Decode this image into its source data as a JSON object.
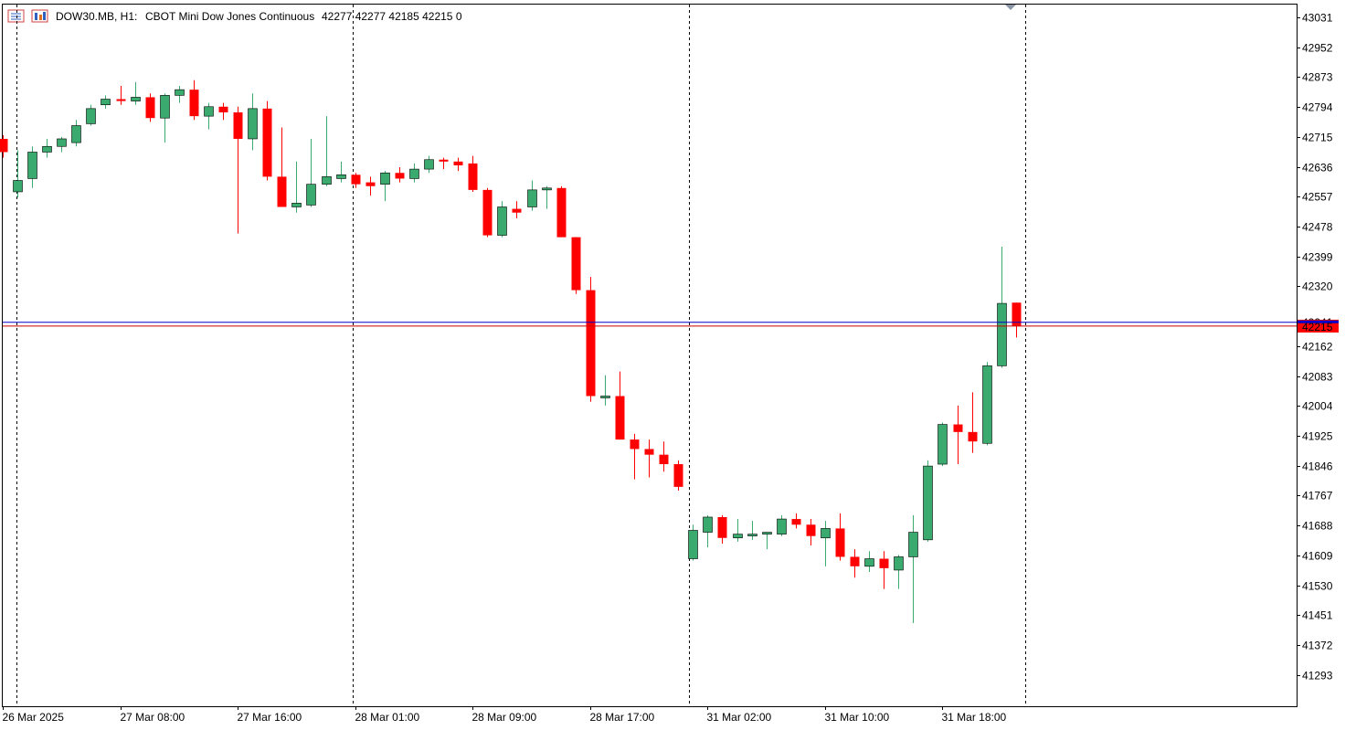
{
  "header": {
    "symbol": "DOW30.MB, H1:",
    "description": "CBOT Mini Dow Jones Continuous",
    "ohlc": "42277 42277 42185 42215 0"
  },
  "colors": {
    "bull": "#3aaa6e",
    "bear": "#ff0000",
    "bid_line": "#0000cc",
    "ask_line": "#cc0000",
    "grid": "#000000",
    "price_tag_bg": "#ff0000"
  },
  "price_tag": "42215",
  "price_tag_hidden": "42241",
  "chart_data": {
    "type": "candlestick",
    "title": "",
    "y_ticks": [
      43031,
      42952,
      42873,
      42794,
      42715,
      42636,
      42557,
      42478,
      42399,
      42320,
      42162,
      42083,
      42004,
      41925,
      41846,
      41767,
      41688,
      41609,
      41530,
      41451,
      41372,
      41293
    ],
    "x_ticks": [
      "26 Mar 2025",
      "27 Mar 08:00",
      "27 Mar 16:00",
      "28 Mar 01:00",
      "28 Mar 09:00",
      "28 Mar 17:00",
      "31 Mar 02:00",
      "31 Mar 10:00",
      "31 Mar 18:00"
    ],
    "ylim": [
      41210,
      43065
    ],
    "bid_price": 42225,
    "last_price": 42215,
    "candles": [
      {
        "o": 42710,
        "h": 42720,
        "l": 42660,
        "c": 42675
      },
      {
        "o": 42570,
        "h": 42680,
        "l": 42555,
        "c": 42600
      },
      {
        "o": 42605,
        "h": 42690,
        "l": 42580,
        "c": 42675
      },
      {
        "o": 42675,
        "h": 42710,
        "l": 42660,
        "c": 42690
      },
      {
        "o": 42690,
        "h": 42715,
        "l": 42675,
        "c": 42710
      },
      {
        "o": 42700,
        "h": 42760,
        "l": 42690,
        "c": 42745
      },
      {
        "o": 42750,
        "h": 42800,
        "l": 42745,
        "c": 42790
      },
      {
        "o": 42800,
        "h": 42825,
        "l": 42790,
        "c": 42815
      },
      {
        "o": 42815,
        "h": 42850,
        "l": 42800,
        "c": 42810
      },
      {
        "o": 42810,
        "h": 42860,
        "l": 42800,
        "c": 42820
      },
      {
        "o": 42820,
        "h": 42830,
        "l": 42755,
        "c": 42765
      },
      {
        "o": 42765,
        "h": 42830,
        "l": 42700,
        "c": 42825
      },
      {
        "o": 42825,
        "h": 42850,
        "l": 42805,
        "c": 42840
      },
      {
        "o": 42840,
        "h": 42865,
        "l": 42760,
        "c": 42770
      },
      {
        "o": 42770,
        "h": 42805,
        "l": 42735,
        "c": 42795
      },
      {
        "o": 42795,
        "h": 42805,
        "l": 42760,
        "c": 42780
      },
      {
        "o": 42780,
        "h": 42795,
        "l": 42460,
        "c": 42710
      },
      {
        "o": 42710,
        "h": 42830,
        "l": 42680,
        "c": 42790
      },
      {
        "o": 42790,
        "h": 42810,
        "l": 42600,
        "c": 42610
      },
      {
        "o": 42610,
        "h": 42740,
        "l": 42530,
        "c": 42530
      },
      {
        "o": 42530,
        "h": 42650,
        "l": 42515,
        "c": 42540
      },
      {
        "o": 42535,
        "h": 42710,
        "l": 42530,
        "c": 42590
      },
      {
        "o": 42590,
        "h": 42770,
        "l": 42585,
        "c": 42610
      },
      {
        "o": 42605,
        "h": 42650,
        "l": 42595,
        "c": 42615
      },
      {
        "o": 42615,
        "h": 42620,
        "l": 42580,
        "c": 42590
      },
      {
        "o": 42595,
        "h": 42610,
        "l": 42560,
        "c": 42585
      },
      {
        "o": 42590,
        "h": 42625,
        "l": 42545,
        "c": 42620
      },
      {
        "o": 42620,
        "h": 42635,
        "l": 42595,
        "c": 42605
      },
      {
        "o": 42605,
        "h": 42645,
        "l": 42595,
        "c": 42630
      },
      {
        "o": 42630,
        "h": 42665,
        "l": 42620,
        "c": 42655
      },
      {
        "o": 42655,
        "h": 42660,
        "l": 42630,
        "c": 42650
      },
      {
        "o": 42650,
        "h": 42660,
        "l": 42625,
        "c": 42640
      },
      {
        "o": 42645,
        "h": 42665,
        "l": 42570,
        "c": 42575
      },
      {
        "o": 42575,
        "h": 42580,
        "l": 42450,
        "c": 42455
      },
      {
        "o": 42455,
        "h": 42545,
        "l": 42450,
        "c": 42530
      },
      {
        "o": 42525,
        "h": 42545,
        "l": 42500,
        "c": 42515
      },
      {
        "o": 42530,
        "h": 42600,
        "l": 42520,
        "c": 42575
      },
      {
        "o": 42575,
        "h": 42585,
        "l": 42525,
        "c": 42580
      },
      {
        "o": 42580,
        "h": 42585,
        "l": 42450,
        "c": 42450
      },
      {
        "o": 42450,
        "h": 42450,
        "l": 42300,
        "c": 42310
      },
      {
        "o": 42310,
        "h": 42345,
        "l": 42015,
        "c": 42030
      },
      {
        "o": 42030,
        "h": 42085,
        "l": 42005,
        "c": 42030
      },
      {
        "o": 42030,
        "h": 42095,
        "l": 41915,
        "c": 41915
      },
      {
        "o": 41915,
        "h": 41930,
        "l": 41810,
        "c": 41890
      },
      {
        "o": 41890,
        "h": 41915,
        "l": 41815,
        "c": 41875
      },
      {
        "o": 41875,
        "h": 41910,
        "l": 41830,
        "c": 41850
      },
      {
        "o": 41850,
        "h": 41860,
        "l": 41780,
        "c": 41790
      },
      {
        "o": 41600,
        "h": 41690,
        "l": 41595,
        "c": 41675
      },
      {
        "o": 41670,
        "h": 41715,
        "l": 41630,
        "c": 41710
      },
      {
        "o": 41710,
        "h": 41715,
        "l": 41640,
        "c": 41655
      },
      {
        "o": 41655,
        "h": 41705,
        "l": 41645,
        "c": 41665
      },
      {
        "o": 41665,
        "h": 41700,
        "l": 41650,
        "c": 41665
      },
      {
        "o": 41665,
        "h": 41670,
        "l": 41625,
        "c": 41670
      },
      {
        "o": 41665,
        "h": 41715,
        "l": 41660,
        "c": 41705
      },
      {
        "o": 41705,
        "h": 41720,
        "l": 41680,
        "c": 41690
      },
      {
        "o": 41690,
        "h": 41705,
        "l": 41635,
        "c": 41660
      },
      {
        "o": 41655,
        "h": 41700,
        "l": 41580,
        "c": 41680
      },
      {
        "o": 41680,
        "h": 41720,
        "l": 41595,
        "c": 41605
      },
      {
        "o": 41605,
        "h": 41625,
        "l": 41550,
        "c": 41580
      },
      {
        "o": 41580,
        "h": 41620,
        "l": 41565,
        "c": 41600
      },
      {
        "o": 41600,
        "h": 41620,
        "l": 41520,
        "c": 41575
      },
      {
        "o": 41570,
        "h": 41610,
        "l": 41520,
        "c": 41605
      },
      {
        "o": 41605,
        "h": 41715,
        "l": 41430,
        "c": 41670
      },
      {
        "o": 41650,
        "h": 41860,
        "l": 41645,
        "c": 41845
      },
      {
        "o": 41850,
        "h": 41960,
        "l": 41845,
        "c": 41955
      },
      {
        "o": 41955,
        "h": 42005,
        "l": 41850,
        "c": 41935
      },
      {
        "o": 41935,
        "h": 42040,
        "l": 41880,
        "c": 41910
      },
      {
        "o": 41905,
        "h": 42120,
        "l": 41900,
        "c": 42110
      },
      {
        "o": 42110,
        "h": 42425,
        "l": 42105,
        "c": 42275
      },
      {
        "o": 42277,
        "h": 42277,
        "l": 42185,
        "c": 42215
      }
    ]
  }
}
